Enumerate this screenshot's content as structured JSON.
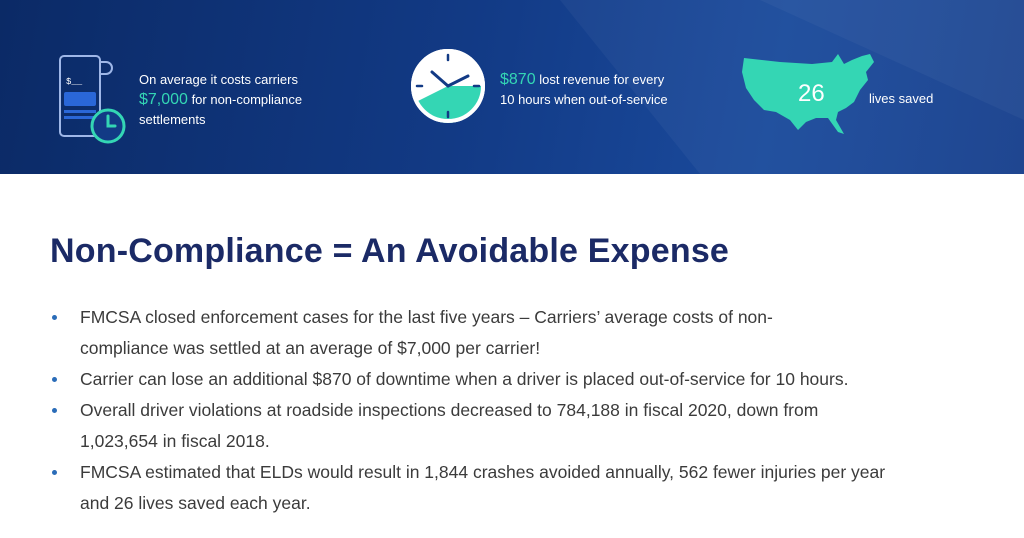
{
  "banner": {
    "stat1": {
      "line1": "On average it costs carriers",
      "amount": "$7,000",
      "line2_rest": "for non-compliance",
      "line3": "settlements",
      "icon": "receipt-clock-icon"
    },
    "stat2": {
      "amount": "$870",
      "line1_rest": "lost revenue for every",
      "line2": "10 hours when out-of-service",
      "icon": "clock-icon"
    },
    "stat3": {
      "number": "26",
      "label": "lives saved",
      "icon": "usa-map-icon"
    }
  },
  "main": {
    "title": "Non-Compliance = An Avoidable Expense",
    "bullets": [
      {
        "line1": "FMCSA closed enforcement cases for the last five years – Carriers’ average costs of non-",
        "line2": "compliance was settled at an average of $7,000 per carrier!"
      },
      {
        "line1": "Carrier can lose an additional $870 of downtime when a driver is placed out-of-service for 10 hours.",
        "line2": ""
      },
      {
        "line1": "Overall driver violations at roadside inspections decreased to 784,188 in fiscal 2020, down from",
        "line2": "1,023,654 in fiscal 2018."
      },
      {
        "line1": "FMCSA estimated that ELDs would result in 1,844 crashes avoided annually, 562 fewer injuries per year",
        "line2": "and 26 lives saved each year."
      }
    ]
  },
  "colors": {
    "banner": "#123a85",
    "accent": "#34d6b4",
    "title": "#1b2a66",
    "bullet": "#2a6cb8"
  }
}
